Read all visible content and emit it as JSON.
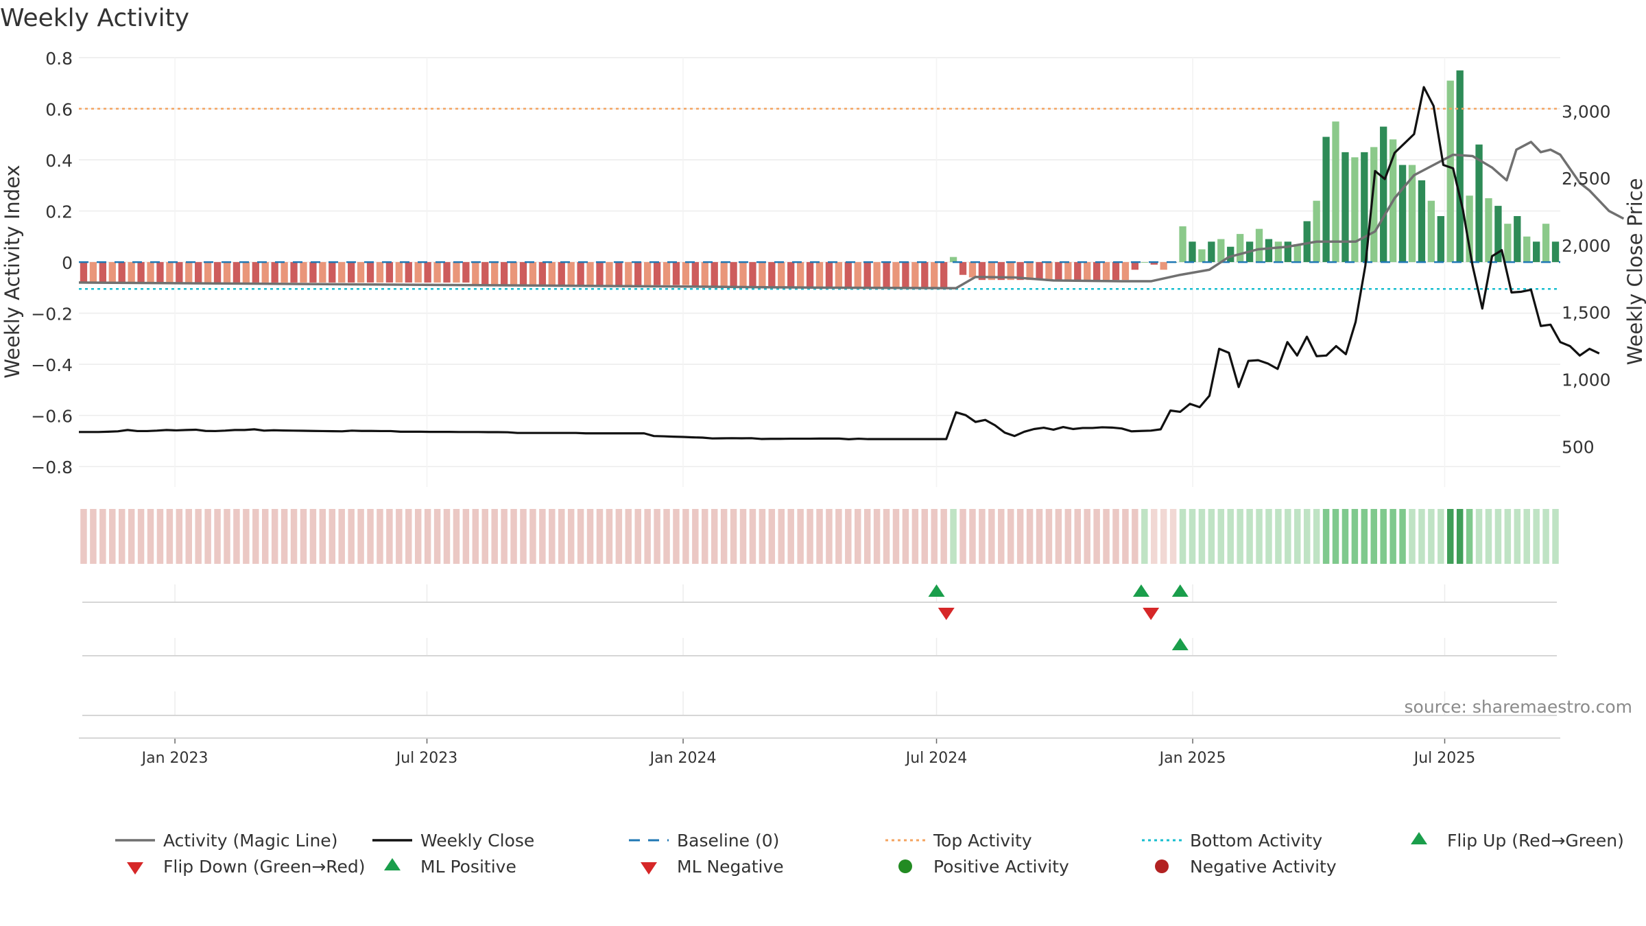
{
  "chart_data": {
    "type": "bar",
    "title": "Weekly Activity",
    "ylabel": "Weekly Activity Index",
    "y2label": "Weekly Close Price",
    "source": "source: sharemaestro.com",
    "ylim": [
      -0.88,
      0.8
    ],
    "y2lim": [
      200,
      3400
    ],
    "yticks": [
      "0.8",
      "0.6",
      "0.4",
      "0.2",
      "0",
      "−0.2",
      "−0.4",
      "−0.6",
      "−0.8"
    ],
    "y2ticks": [
      "3,000",
      "2,500",
      "2,000",
      "1,500",
      "1,000",
      "500"
    ],
    "xlim": [
      "2022-10-24",
      "2025-09-22"
    ],
    "xticks": [
      "Jan 2023",
      "Jul 2023",
      "Jan 2024",
      "Jul 2024",
      "Jan 2025",
      "Jul 2025"
    ],
    "top_activity": 0.6,
    "bottom_activity": -0.105,
    "baseline": 0,
    "grid": true,
    "legend_position": "bottom",
    "colors": {
      "green_dark": "#2e8b57",
      "green_light": "#8bc98a",
      "red_dark": "#cd5c5c",
      "red_light": "#e9967a",
      "magic_line": "#707070",
      "close": "#111111",
      "top": "#f4a460",
      "bottom": "#17becf",
      "baseline": "#1f77b4"
    },
    "activity": [
      -0.08,
      -0.08,
      -0.08,
      -0.08,
      -0.08,
      -0.08,
      -0.08,
      -0.08,
      -0.08,
      -0.08,
      -0.08,
      -0.08,
      -0.08,
      -0.08,
      -0.08,
      -0.08,
      -0.08,
      -0.08,
      -0.08,
      -0.08,
      -0.08,
      -0.08,
      -0.08,
      -0.08,
      -0.08,
      -0.08,
      -0.08,
      -0.08,
      -0.08,
      -0.08,
      -0.08,
      -0.08,
      -0.08,
      -0.08,
      -0.08,
      -0.08,
      -0.08,
      -0.08,
      -0.08,
      -0.08,
      -0.08,
      -0.09,
      -0.09,
      -0.09,
      -0.09,
      -0.09,
      -0.09,
      -0.09,
      -0.09,
      -0.09,
      -0.09,
      -0.09,
      -0.09,
      -0.09,
      -0.09,
      -0.09,
      -0.09,
      -0.09,
      -0.09,
      -0.09,
      -0.09,
      -0.09,
      -0.09,
      -0.09,
      -0.1,
      -0.1,
      -0.1,
      -0.1,
      -0.1,
      -0.1,
      -0.1,
      -0.1,
      -0.1,
      -0.1,
      -0.1,
      -0.1,
      -0.1,
      -0.1,
      -0.1,
      -0.1,
      -0.1,
      -0.1,
      -0.1,
      -0.1,
      -0.1,
      -0.1,
      -0.1,
      -0.1,
      -0.1,
      -0.1,
      -0.1,
      0.02,
      -0.05,
      -0.06,
      -0.07,
      -0.07,
      -0.07,
      -0.07,
      -0.07,
      -0.07,
      -0.07,
      -0.07,
      -0.07,
      -0.07,
      -0.07,
      -0.07,
      -0.07,
      -0.07,
      -0.07,
      -0.07,
      -0.03,
      0,
      -0.01,
      -0.03,
      0,
      0.14,
      0.08,
      0.05,
      0.08,
      0.09,
      0.06,
      0.11,
      0.08,
      0.13,
      0.09,
      0.08,
      0.08,
      0.07,
      0.16,
      0.24,
      0.49,
      0.55,
      0.43,
      0.41,
      0.43,
      0.45,
      0.53,
      0.48,
      0.38,
      0.38,
      0.32,
      0.24,
      0.18,
      0.71,
      0.75,
      0.26,
      0.46,
      0.25,
      0.22,
      0.15,
      0.18,
      0.1,
      0.08,
      0.15,
      0.08
    ],
    "close": [
      [
        0.0,
        610
      ],
      [
        1.0,
        610
      ],
      [
        2.0,
        610
      ],
      [
        3.0,
        612
      ],
      [
        4.0,
        615
      ],
      [
        5.0,
        625
      ],
      [
        6.0,
        617
      ],
      [
        7.0,
        617
      ],
      [
        8.0,
        620
      ],
      [
        9.0,
        625
      ],
      [
        10.0,
        622
      ],
      [
        11.0,
        625
      ],
      [
        12.0,
        627
      ],
      [
        13.0,
        618
      ],
      [
        14.0,
        617
      ],
      [
        15.0,
        620
      ],
      [
        16.0,
        625
      ],
      [
        17.0,
        625
      ],
      [
        18.0,
        630
      ],
      [
        19.0,
        620
      ],
      [
        20.0,
        623
      ],
      [
        21.0,
        621
      ],
      [
        22.0,
        620
      ],
      [
        23.0,
        619
      ],
      [
        24.0,
        618
      ],
      [
        25.0,
        617
      ],
      [
        26.0,
        616
      ],
      [
        27.0,
        615
      ],
      [
        28.0,
        620
      ],
      [
        29.0,
        618
      ],
      [
        30.0,
        618
      ],
      [
        31.0,
        617
      ],
      [
        32.0,
        617
      ],
      [
        33.0,
        612
      ],
      [
        34.0,
        612
      ],
      [
        35.0,
        612
      ],
      [
        36.0,
        611
      ],
      [
        37.0,
        611
      ],
      [
        38.0,
        611
      ],
      [
        39.0,
        610
      ],
      [
        40.0,
        610
      ],
      [
        41.0,
        610
      ],
      [
        42.0,
        609
      ],
      [
        43.0,
        609
      ],
      [
        44.0,
        608
      ],
      [
        45.0,
        603
      ],
      [
        46.0,
        603
      ],
      [
        47.0,
        603
      ],
      [
        48.0,
        603
      ],
      [
        49.0,
        603
      ],
      [
        50.0,
        603
      ],
      [
        51.0,
        603
      ],
      [
        52.0,
        600
      ],
      [
        53.0,
        600
      ],
      [
        54.0,
        600
      ],
      [
        55.0,
        600
      ],
      [
        56.0,
        600
      ],
      [
        57.0,
        600
      ],
      [
        58.0,
        600
      ],
      [
        59.0,
        580
      ],
      [
        60.0,
        578
      ],
      [
        61.0,
        575
      ],
      [
        62.0,
        573
      ],
      [
        63.0,
        570
      ],
      [
        64.0,
        568
      ],
      [
        65.0,
        562
      ],
      [
        66.0,
        563
      ],
      [
        67.0,
        564
      ],
      [
        68.0,
        563
      ],
      [
        69.0,
        564
      ],
      [
        70.0,
        558
      ],
      [
        71.0,
        559
      ],
      [
        72.0,
        559
      ],
      [
        73.0,
        560
      ],
      [
        74.0,
        560
      ],
      [
        75.0,
        560
      ],
      [
        76.0,
        561
      ],
      [
        77.0,
        561
      ],
      [
        78.0,
        561
      ],
      [
        79.0,
        556
      ],
      [
        80.0,
        560
      ],
      [
        81.0,
        557
      ],
      [
        82.0,
        557
      ],
      [
        83.0,
        557
      ],
      [
        84.0,
        557
      ],
      [
        85.0,
        557
      ],
      [
        86.0,
        557
      ],
      [
        87.0,
        557
      ],
      [
        88.0,
        557
      ],
      [
        89.0,
        557
      ],
      [
        90.0,
        757
      ],
      [
        91.0,
        735
      ],
      [
        92.0,
        685
      ],
      [
        93.0,
        700
      ],
      [
        94.0,
        660
      ],
      [
        95.0,
        605
      ],
      [
        96.0,
        580
      ],
      [
        97.0,
        612
      ],
      [
        98.0,
        632
      ],
      [
        99.0,
        642
      ],
      [
        100.0,
        627
      ],
      [
        101.0,
        647
      ],
      [
        102.0,
        632
      ],
      [
        103.0,
        640
      ],
      [
        104.0,
        640
      ],
      [
        105.0,
        645
      ],
      [
        106.0,
        643
      ],
      [
        107.0,
        636
      ],
      [
        108.0,
        615
      ],
      [
        109.0,
        618
      ],
      [
        110.0,
        620
      ],
      [
        111.0,
        630
      ],
      [
        112.0,
        770
      ],
      [
        113.0,
        760
      ],
      [
        114.0,
        820
      ],
      [
        115.0,
        795
      ],
      [
        116.0,
        880
      ],
      [
        117.0,
        1230
      ],
      [
        118.0,
        1200
      ],
      [
        119.0,
        945
      ],
      [
        120.0,
        1140
      ],
      [
        121.0,
        1145
      ],
      [
        122.0,
        1120
      ],
      [
        123.0,
        1080
      ],
      [
        124.0,
        1280
      ],
      [
        125.0,
        1180
      ],
      [
        126.0,
        1320
      ],
      [
        127.0,
        1175
      ],
      [
        128.0,
        1180
      ],
      [
        129.0,
        1250
      ],
      [
        130.0,
        1190
      ],
      [
        131.0,
        1430
      ],
      [
        132.0,
        1850
      ],
      [
        133.0,
        2555
      ],
      [
        134.0,
        2495
      ],
      [
        135.0,
        2690
      ],
      [
        136.0,
        2760
      ],
      [
        137.0,
        2830
      ],
      [
        138.0,
        3180
      ],
      [
        139.0,
        3040
      ],
      [
        140.0,
        2600
      ],
      [
        141.0,
        2575
      ],
      [
        142.0,
        2270
      ],
      [
        143.0,
        1850
      ],
      [
        144.0,
        1530
      ],
      [
        145.0,
        1920
      ],
      [
        146.0,
        1965
      ],
      [
        147.0,
        1650
      ],
      [
        148.0,
        1655
      ],
      [
        149.0,
        1670
      ],
      [
        150.0,
        1400
      ],
      [
        151.0,
        1410
      ],
      [
        152.0,
        1280
      ],
      [
        153.0,
        1250
      ],
      [
        154.0,
        1180
      ],
      [
        155.0,
        1230
      ],
      [
        156.0,
        1195
      ]
    ],
    "magic_line": [
      [
        0.0,
        -0.08
      ],
      [
        20.0,
        -0.085
      ],
      [
        40.0,
        -0.09
      ],
      [
        60.0,
        -0.095
      ],
      [
        76.0,
        -0.1
      ],
      [
        90.0,
        -0.102
      ],
      [
        92.0,
        -0.058
      ],
      [
        96.0,
        -0.06
      ],
      [
        100.0,
        -0.072
      ],
      [
        107.0,
        -0.075
      ],
      [
        110.0,
        -0.075
      ],
      [
        113.0,
        -0.05
      ],
      [
        116.0,
        -0.03
      ],
      [
        118.0,
        0.02
      ],
      [
        121.0,
        0.05
      ],
      [
        124.0,
        0.06
      ],
      [
        127.0,
        0.08
      ],
      [
        131.0,
        0.08
      ],
      [
        133.0,
        0.12
      ],
      [
        135.0,
        0.25
      ],
      [
        137.0,
        0.34
      ],
      [
        139.0,
        0.38
      ],
      [
        141.0,
        0.42
      ],
      [
        143.0,
        0.415
      ],
      [
        145.0,
        0.37
      ],
      [
        146.5,
        0.32
      ],
      [
        147.5,
        0.44
      ],
      [
        149.0,
        0.47
      ],
      [
        150.0,
        0.43
      ],
      [
        151.0,
        0.44
      ],
      [
        152.0,
        0.42
      ],
      [
        154.0,
        0.31
      ],
      [
        155.0,
        0.28
      ],
      [
        157.0,
        0.2
      ],
      [
        158.5,
        0.17
      ]
    ],
    "band": [
      "r",
      "r",
      "r",
      "r",
      "r",
      "r",
      "r",
      "r",
      "r",
      "r",
      "r",
      "r",
      "r",
      "r",
      "r",
      "r",
      "r",
      "r",
      "r",
      "r",
      "r",
      "r",
      "r",
      "r",
      "r",
      "r",
      "r",
      "r",
      "r",
      "r",
      "r",
      "r",
      "r",
      "r",
      "r",
      "r",
      "r",
      "r",
      "r",
      "r",
      "r",
      "r",
      "r",
      "r",
      "r",
      "r",
      "r",
      "r",
      "r",
      "r",
      "r",
      "r",
      "r",
      "r",
      "r",
      "r",
      "r",
      "r",
      "r",
      "r",
      "r",
      "r",
      "r",
      "r",
      "r",
      "r",
      "r",
      "r",
      "r",
      "r",
      "r",
      "r",
      "r",
      "r",
      "r",
      "r",
      "r",
      "r",
      "r",
      "r",
      "r",
      "r",
      "r",
      "r",
      "r",
      "r",
      "r",
      "r",
      "r",
      "r",
      "r",
      "g",
      "r",
      "r",
      "r",
      "r",
      "r",
      "r",
      "r",
      "r",
      "r",
      "r",
      "r",
      "r",
      "r",
      "r",
      "r",
      "r",
      "r",
      "r",
      "r",
      "g",
      "r2",
      "r2",
      "r2",
      "g",
      "g",
      "g",
      "g",
      "g",
      "g",
      "g",
      "g",
      "g",
      "g",
      "g",
      "g",
      "g",
      "g",
      "g",
      "g2",
      "g2",
      "g2",
      "g2",
      "g2",
      "g2",
      "g2",
      "g2",
      "g2",
      "g",
      "g",
      "g",
      "g",
      "g3",
      "g3",
      "g2",
      "g",
      "g",
      "g",
      "g",
      "g",
      "g",
      "g",
      "g",
      "g"
    ],
    "flip_up": [
      "2024-07-01",
      "2024-11-25",
      "2024-12-23"
    ],
    "flip_down": [
      "2024-07-08",
      "2024-12-02"
    ],
    "ml_positive": [
      "2024-12-23"
    ],
    "ml_negative": [],
    "positive_activity": [],
    "negative_activity": []
  },
  "legend": [
    {
      "label": "Activity (Magic Line)",
      "symbol": "line",
      "color": "#707070"
    },
    {
      "label": "Weekly Close",
      "symbol": "line",
      "color": "#111111"
    },
    {
      "label": "Baseline (0)",
      "symbol": "dash",
      "color": "#1f77b4"
    },
    {
      "label": "Top Activity",
      "symbol": "dot",
      "color": "#f4a460"
    },
    {
      "label": "Bottom Activity",
      "symbol": "dot",
      "color": "#17becf"
    },
    {
      "label": "Flip Up (Red→Green)",
      "symbol": "tri-up",
      "color": "#1a9e4b"
    },
    {
      "label": "Flip Down (Green→Red)",
      "symbol": "tri-down",
      "color": "#d62728"
    },
    {
      "label": "ML Positive",
      "symbol": "tri-up",
      "color": "#1a9e4b"
    },
    {
      "label": "ML Negative",
      "symbol": "tri-down",
      "color": "#d62728"
    },
    {
      "label": "Positive Activity",
      "symbol": "circle",
      "color": "#228b22"
    },
    {
      "label": "Negative Activity",
      "symbol": "circle",
      "color": "#b22222"
    }
  ]
}
